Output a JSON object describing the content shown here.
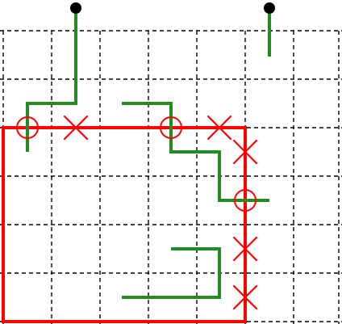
{
  "puzzle": {
    "colors": {
      "background": "#ffffff",
      "grid": "#000000",
      "region": "#ff0000",
      "path": "#228b22",
      "marker_cross": "#ff0000",
      "marker_circle": "#ff0000",
      "endpoint": "#000000"
    },
    "grid": {
      "style": "dashed"
    },
    "path_segments": [
      {
        "id": "left-hook"
      },
      {
        "id": "upper-middle-path"
      },
      {
        "id": "right-top-stub"
      },
      {
        "id": "lower-right-bracket"
      }
    ],
    "markers": {
      "circles": 3,
      "crosses": 5,
      "endpoints": 2
    }
  }
}
